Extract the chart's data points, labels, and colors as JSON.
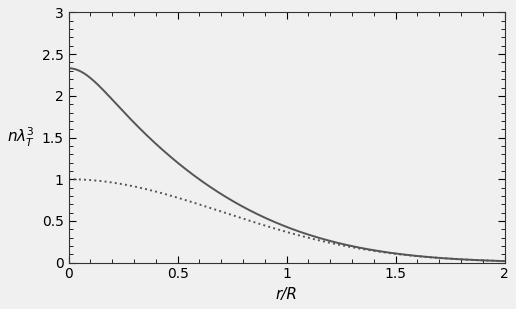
{
  "xmin": 0,
  "xmax": 2,
  "ymin": 0,
  "ymax": 3,
  "xlabel": "r/R",
  "ylabel": "n\\lambda_T^3",
  "xticks": [
    0,
    0.5,
    1.0,
    1.5,
    2.0
  ],
  "yticks": [
    0,
    0.5,
    1.0,
    1.5,
    2.0,
    2.5,
    3.0
  ],
  "solid_color": "#555555",
  "dotted_color": "#555555",
  "linewidth": 1.4,
  "n_points": 500,
  "n_terms": 50,
  "background": "#f0f0f0"
}
